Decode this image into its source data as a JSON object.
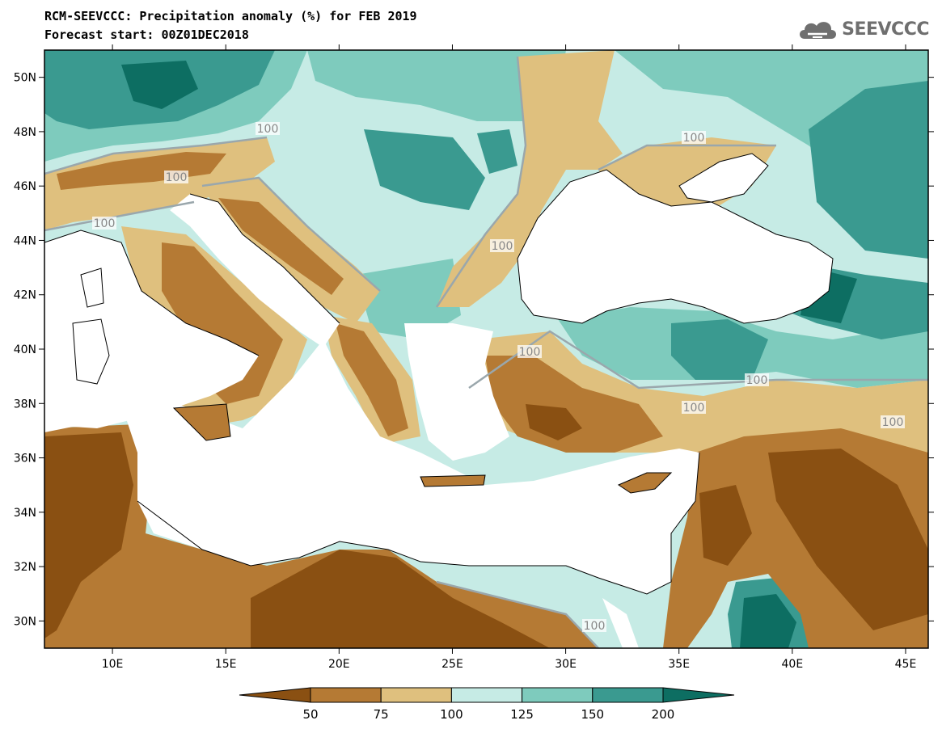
{
  "title_line1": "RCM-SEEVCCC: Precipitation anomaly (%) for FEB 2019",
  "title_line2": "Forecast start: 00Z01DEC2018",
  "logo_text": "SEEVCCC",
  "axes": {
    "lon_range": [
      7,
      46
    ],
    "lat_range": [
      29,
      51
    ],
    "x_ticks": [
      "10E",
      "15E",
      "20E",
      "25E",
      "30E",
      "35E",
      "40E",
      "45E"
    ],
    "y_ticks": [
      "50N",
      "48N",
      "46N",
      "44N",
      "42N",
      "40N",
      "38N",
      "36N",
      "34N",
      "32N",
      "30N"
    ]
  },
  "contour_labels": [
    "100",
    "100",
    "100",
    "100",
    "100",
    "100",
    "100",
    "100",
    "100",
    "100"
  ],
  "colorbar": {
    "ticks": [
      "50",
      "75",
      "100",
      "125",
      "150",
      "200"
    ],
    "colors": [
      "#8a5012",
      "#b57a34",
      "#dfc07e",
      "#c6ebe5",
      "#7ecbbd",
      "#3a9a90",
      "#0d6e62"
    ]
  },
  "colors": {
    "land_default": "#c6ebe5",
    "sea": "#ffffff",
    "contour": "#9aa7ac"
  }
}
